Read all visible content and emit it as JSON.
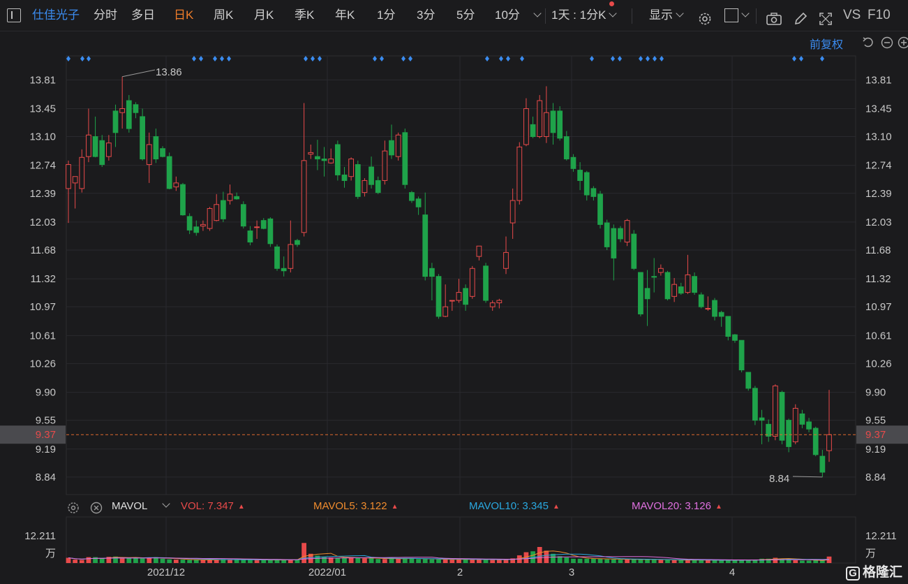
{
  "toolbar": {
    "stock_name": "仕佳光子",
    "tabs": [
      "分时",
      "多日",
      "日K",
      "周K",
      "月K",
      "季K",
      "年K",
      "1分",
      "3分",
      "5分",
      "10分"
    ],
    "active_tab": "日K",
    "interval_select": "1天 : 1分K",
    "display_label": "显示",
    "vs_label": "VS",
    "f10_label": "F10",
    "adjust_label": "前复权"
  },
  "colors": {
    "up": "#e84a4a",
    "down": "#1fa34a",
    "accent_blue": "#3b8cf0",
    "active_orange": "#f07d2a",
    "mavol5": "#f08c2e",
    "mavol10": "#2aa8e0",
    "mavol20": "#e070e0"
  },
  "indicator": {
    "name": "MAVOL",
    "vol_label": "VOL: 7.347",
    "mavol5_label": "MAVOL5: 3.122",
    "mavol10_label": "MAVOL10: 3.345",
    "mavol20_label": "MAVOL20: 3.126",
    "max_label": "12.211",
    "unit_label": "万"
  },
  "watermark": "格隆汇",
  "chart_data": {
    "type": "candlestick",
    "y_ticks": [
      "13.81",
      "13.45",
      "13.10",
      "12.74",
      "12.39",
      "12.03",
      "11.68",
      "11.32",
      "10.97",
      "10.61",
      "10.26",
      "9.90",
      "9.55",
      "9.19",
      "8.84"
    ],
    "x_ticks": [
      "2021/12",
      "2022/01",
      "2",
      "3",
      "4"
    ],
    "current_price": "9.37",
    "high_annotation": "13.86",
    "low_annotation": "8.84",
    "ylim": [
      8.62,
      14.11
    ],
    "volume_max": 12.211,
    "ohlc": [
      [
        12.45,
        12.75,
        12.02,
        12.8,
        1.7
      ],
      [
        12.52,
        12.6,
        12.2,
        12.58,
        1.1
      ],
      [
        12.45,
        12.84,
        12.4,
        12.94,
        1.0
      ],
      [
        12.85,
        13.12,
        12.78,
        13.45,
        1.9
      ],
      [
        13.1,
        12.85,
        12.84,
        13.35,
        1.9
      ],
      [
        13.05,
        12.75,
        12.72,
        13.12,
        1.5
      ],
      [
        12.85,
        13.02,
        12.8,
        13.12,
        2.0
      ],
      [
        13.42,
        13.15,
        12.97,
        13.5,
        2.1
      ],
      [
        13.4,
        13.45,
        13.2,
        13.85,
        1.5
      ],
      [
        13.55,
        13.2,
        13.15,
        13.62,
        1.7
      ],
      [
        13.5,
        13.4,
        13.33,
        13.53,
        1.7
      ],
      [
        13.35,
        12.82,
        12.8,
        13.45,
        1.5
      ],
      [
        12.75,
        13.0,
        12.52,
        13.15,
        1.8
      ],
      [
        13.1,
        12.82,
        12.77,
        13.2,
        1.9
      ],
      [
        12.95,
        12.85,
        12.84,
        12.98,
        1.4
      ],
      [
        12.85,
        12.45,
        12.44,
        12.9,
        1.2
      ],
      [
        12.47,
        12.52,
        12.42,
        12.6,
        1.1
      ],
      [
        12.5,
        12.12,
        12.11,
        12.52,
        1.1
      ],
      [
        12.1,
        11.93,
        11.88,
        12.14,
        1.0
      ],
      [
        11.97,
        11.9,
        11.86,
        12.05,
        1.0
      ],
      [
        11.98,
        12.0,
        11.92,
        12.05,
        1.0
      ],
      [
        11.95,
        12.2,
        11.92,
        12.22,
        1.0
      ],
      [
        12.05,
        12.25,
        12.04,
        12.38,
        1.2
      ],
      [
        12.3,
        12.07,
        12.03,
        12.41,
        1.3
      ],
      [
        12.3,
        12.38,
        12.25,
        12.5,
        1.2
      ],
      [
        12.35,
        12.32,
        12.31,
        12.4,
        1.1
      ],
      [
        12.25,
        11.98,
        11.95,
        12.29,
        1.0
      ],
      [
        11.92,
        11.78,
        11.74,
        11.98,
        1.0
      ],
      [
        11.97,
        11.97,
        11.82,
        12.05,
        1.0
      ],
      [
        12.05,
        11.95,
        11.94,
        12.08,
        1.0
      ],
      [
        12.07,
        11.76,
        11.72,
        12.09,
        1.0
      ],
      [
        11.72,
        11.45,
        11.42,
        11.75,
        1.0
      ],
      [
        11.45,
        11.42,
        11.35,
        11.6,
        1.0
      ],
      [
        11.45,
        11.75,
        11.4,
        12.05,
        1.2
      ],
      [
        11.8,
        11.75,
        11.72,
        11.82,
        1.1
      ],
      [
        11.9,
        12.8,
        11.85,
        13.52,
        6.5
      ],
      [
        12.88,
        12.9,
        12.82,
        13.0,
        3.0
      ],
      [
        12.85,
        12.82,
        12.68,
        13.06,
        2.4
      ],
      [
        12.82,
        12.8,
        12.6,
        12.97,
        2.0
      ],
      [
        12.77,
        12.82,
        12.76,
        12.95,
        1.8
      ],
      [
        13.0,
        12.62,
        12.55,
        13.05,
        1.6
      ],
      [
        12.62,
        12.55,
        12.46,
        12.72,
        1.7
      ],
      [
        12.6,
        12.82,
        12.55,
        12.84,
        1.9
      ],
      [
        12.75,
        12.35,
        12.32,
        12.8,
        1.6
      ],
      [
        12.4,
        12.55,
        12.35,
        12.58,
        1.5
      ],
      [
        12.72,
        12.5,
        12.45,
        12.85,
        1.6
      ],
      [
        12.55,
        12.4,
        12.38,
        12.6,
        1.3
      ],
      [
        12.55,
        12.92,
        12.5,
        13.05,
        1.3
      ],
      [
        13.05,
        12.87,
        12.82,
        13.25,
        1.5
      ],
      [
        12.85,
        13.12,
        12.8,
        13.15,
        1.4
      ],
      [
        13.15,
        12.5,
        12.45,
        13.2,
        1.6
      ],
      [
        12.4,
        12.3,
        12.27,
        12.42,
        1.5
      ],
      [
        12.32,
        12.22,
        12.12,
        12.35,
        1.3
      ],
      [
        12.12,
        11.35,
        11.3,
        12.4,
        1.3
      ],
      [
        11.45,
        11.35,
        11.05,
        11.52,
        1.2
      ],
      [
        11.35,
        10.85,
        10.82,
        11.38,
        1.2
      ],
      [
        10.85,
        10.97,
        10.84,
        11.25,
        1.2
      ],
      [
        11.05,
        11.05,
        10.92,
        11.05,
        1.1
      ],
      [
        11.05,
        11.15,
        11.02,
        11.32,
        1.2
      ],
      [
        11.2,
        11.0,
        10.92,
        11.25,
        1.2
      ],
      [
        11.1,
        11.45,
        11.07,
        11.48,
        1.1
      ],
      [
        11.6,
        11.73,
        11.55,
        11.73,
        1.2
      ],
      [
        11.48,
        11.05,
        11.02,
        11.52,
        1.1
      ],
      [
        10.97,
        11.02,
        10.92,
        11.05,
        1.0
      ],
      [
        11.02,
        11.05,
        10.95,
        11.07,
        1.0
      ],
      [
        11.45,
        11.65,
        11.38,
        11.85,
        1.2
      ],
      [
        12.02,
        12.3,
        11.82,
        12.45,
        1.5
      ],
      [
        12.3,
        12.97,
        12.25,
        13.03,
        2.5
      ],
      [
        13.0,
        13.45,
        12.98,
        13.58,
        3.5
      ],
      [
        13.25,
        13.1,
        13.08,
        13.35,
        3.8
      ],
      [
        13.1,
        13.55,
        13.08,
        13.62,
        5.2
      ],
      [
        13.1,
        13.4,
        13.02,
        13.73,
        4.0
      ],
      [
        13.42,
        13.15,
        13.0,
        13.52,
        3.0
      ],
      [
        13.42,
        13.08,
        13.05,
        13.48,
        2.2
      ],
      [
        13.1,
        12.82,
        12.8,
        13.17,
        1.8
      ],
      [
        12.84,
        12.7,
        12.66,
        12.88,
        1.4
      ],
      [
        12.68,
        12.55,
        12.43,
        12.78,
        1.4
      ],
      [
        12.65,
        12.37,
        12.3,
        12.67,
        1.4
      ],
      [
        12.45,
        12.35,
        12.3,
        12.48,
        1.4
      ],
      [
        12.38,
        12.0,
        11.95,
        12.42,
        1.4
      ],
      [
        12.02,
        11.72,
        11.68,
        12.06,
        1.2
      ],
      [
        11.95,
        11.58,
        11.3,
        12.0,
        1.2
      ],
      [
        11.95,
        11.82,
        11.78,
        11.98,
        1.1
      ],
      [
        11.78,
        12.05,
        11.73,
        12.07,
        1.2
      ],
      [
        11.88,
        11.45,
        11.43,
        11.93,
        1.2
      ],
      [
        11.4,
        10.88,
        10.85,
        11.4,
        1.1
      ],
      [
        11.2,
        11.07,
        10.73,
        11.43,
        1.2
      ],
      [
        11.35,
        11.34,
        11.15,
        11.58,
        1.1
      ],
      [
        11.4,
        11.45,
        11.36,
        11.5,
        1.0
      ],
      [
        11.4,
        11.07,
        11.05,
        11.42,
        1.0
      ],
      [
        11.1,
        11.25,
        11.03,
        11.33,
        0.9
      ],
      [
        11.22,
        11.14,
        11.12,
        11.27,
        0.9
      ],
      [
        11.15,
        11.37,
        11.13,
        11.62,
        1.0
      ],
      [
        11.35,
        11.15,
        11.12,
        11.4,
        1.0
      ],
      [
        11.12,
        10.97,
        10.95,
        11.15,
        0.9
      ],
      [
        10.95,
        10.95,
        10.92,
        11.1,
        0.9
      ],
      [
        11.05,
        10.85,
        10.8,
        11.08,
        0.9
      ],
      [
        10.9,
        10.85,
        10.72,
        10.92,
        0.8
      ],
      [
        10.85,
        10.6,
        10.55,
        10.85,
        1.0
      ],
      [
        10.62,
        10.55,
        10.52,
        10.63,
        0.9
      ],
      [
        10.55,
        10.18,
        10.15,
        10.55,
        0.9
      ],
      [
        10.15,
        9.95,
        9.92,
        10.15,
        1.0
      ],
      [
        9.95,
        9.55,
        9.49,
        9.98,
        1.1
      ],
      [
        9.58,
        9.55,
        9.25,
        9.68,
        1.4
      ],
      [
        9.5,
        9.35,
        9.28,
        9.56,
        1.4
      ],
      [
        9.35,
        9.98,
        9.3,
        10.0,
        1.7
      ],
      [
        9.9,
        9.3,
        9.25,
        9.92,
        1.4
      ],
      [
        9.55,
        9.22,
        9.15,
        9.57,
        1.4
      ],
      [
        9.28,
        9.7,
        9.25,
        9.75,
        0.9
      ],
      [
        9.63,
        9.5,
        9.45,
        9.68,
        0.8
      ],
      [
        9.53,
        9.44,
        9.4,
        9.58,
        0.8
      ],
      [
        9.45,
        9.12,
        9.1,
        9.47,
        0.9
      ],
      [
        9.1,
        8.9,
        8.84,
        9.18,
        0.9
      ],
      [
        9.17,
        9.37,
        9.03,
        9.93,
        2.1
      ]
    ]
  }
}
